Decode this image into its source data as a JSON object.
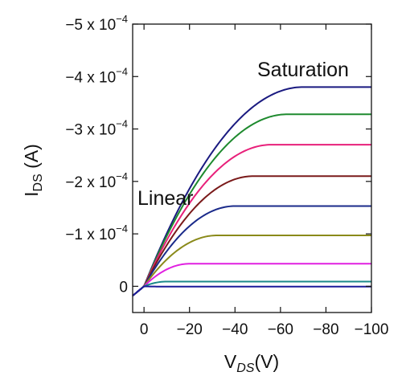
{
  "chart_data": {
    "type": "line",
    "xlabel": {
      "main": "V",
      "sub": "DS",
      "unit": "(V)"
    },
    "ylabel": {
      "main": "I",
      "sub": "DS",
      "unit": " (A)"
    },
    "xlim": [
      5,
      -100
    ],
    "ylim": [
      5e-05,
      -0.0005
    ],
    "x_ticks": [
      0,
      -20,
      -40,
      -60,
      -80,
      -100
    ],
    "x_tick_labels": [
      "0",
      "−20",
      "−40",
      "−60",
      "−80",
      "−100"
    ],
    "y_ticks": [
      {
        "value": 0,
        "label": "0"
      },
      {
        "value": -0.0001,
        "label": "−1 x 10",
        "exp": "−4"
      },
      {
        "value": -0.0002,
        "label": "−2 x 10",
        "exp": "−4"
      },
      {
        "value": -0.0003,
        "label": "−3 x 10",
        "exp": "−4"
      },
      {
        "value": -0.0004,
        "label": "−4 x 10",
        "exp": "−4"
      },
      {
        "value": -0.0005,
        "label": "−5 x 10",
        "exp": "−4"
      }
    ],
    "annotations": [
      {
        "name": "annotation-saturation",
        "text": "Saturation"
      },
      {
        "name": "annotation-linear",
        "text": "Linear"
      }
    ],
    "series": [
      {
        "color": "#1a1a80",
        "i_sat": -0.00038,
        "v_sat": -70
      },
      {
        "color": "#1e8a2e",
        "i_sat": -0.000328,
        "v_sat": -63
      },
      {
        "color": "#e8207a",
        "i_sat": -0.00027,
        "v_sat": -56
      },
      {
        "color": "#7a1a1a",
        "i_sat": -0.00021,
        "v_sat": -48
      },
      {
        "color": "#1a2a8a",
        "i_sat": -0.000153,
        "v_sat": -40
      },
      {
        "color": "#8a8a1a",
        "i_sat": -9.7e-05,
        "v_sat": -32
      },
      {
        "color": "#e020e0",
        "i_sat": -4.3e-05,
        "v_sat": -20
      },
      {
        "color": "#1a8a8a",
        "i_sat": -9e-06,
        "v_sat": -10
      },
      {
        "color": "#1a1a9a",
        "i_sat": 0.0,
        "v_sat": -5
      }
    ]
  }
}
